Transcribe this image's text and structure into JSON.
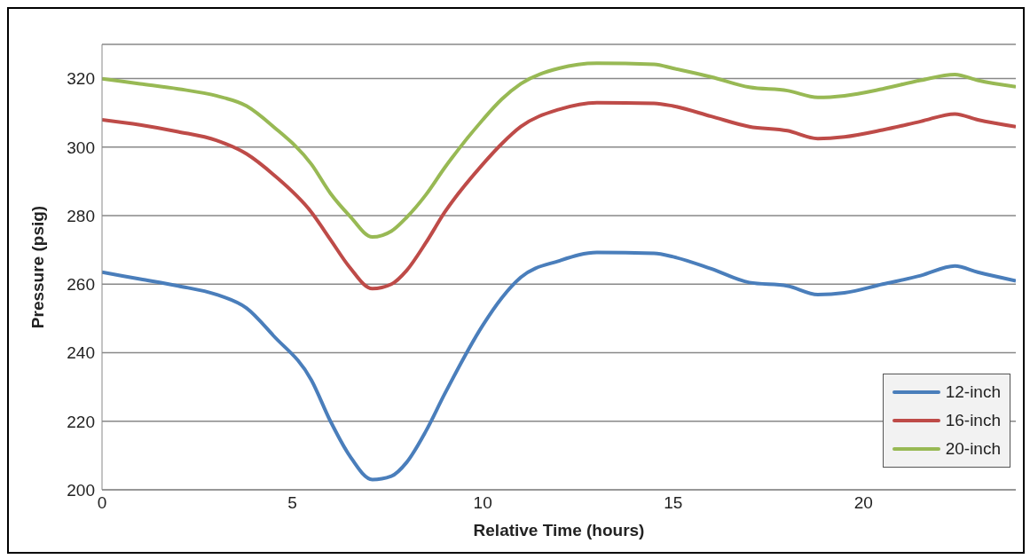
{
  "chart_data": {
    "type": "line",
    "xlabel": "Relative Time (hours)",
    "ylabel": "Pressure (psig)",
    "x": [
      0,
      1,
      2,
      3,
      3.8,
      4.5,
      5.5,
      6,
      6.5,
      7.1,
      7.6,
      8,
      8.5,
      9,
      10,
      10.5,
      11,
      12,
      13,
      14.5,
      15,
      16,
      17,
      18,
      18.8,
      19.5,
      20.5,
      21.5,
      22.4,
      23,
      24
    ],
    "series": [
      {
        "name": "12-inch",
        "color": "#4a7ebb",
        "values": [
          263.5,
          261.5,
          259.5,
          257,
          253,
          245,
          232,
          220,
          210,
          203,
          204,
          208,
          217,
          228,
          248,
          256,
          262,
          266.8,
          269.3,
          269,
          268,
          264.5,
          260.5,
          259.5,
          257,
          257.5,
          260,
          262.5,
          265.3,
          263.5,
          261
        ]
      },
      {
        "name": "16-inch",
        "color": "#be4b48",
        "values": [
          308,
          306.5,
          304.5,
          302,
          298,
          292,
          281,
          273,
          265,
          258.7,
          260,
          264,
          272,
          281,
          295,
          301,
          306,
          311,
          313,
          312.8,
          312,
          309,
          306,
          304.8,
          302.5,
          303,
          305,
          307.5,
          309.7,
          308,
          306
        ]
      },
      {
        "name": "20-inch",
        "color": "#98b954",
        "values": [
          320,
          318.5,
          317,
          315,
          312,
          306,
          295,
          286.5,
          280,
          273.8,
          275.5,
          279.5,
          286,
          294,
          308,
          314,
          318.5,
          323,
          324.5,
          324.2,
          323,
          320.5,
          317.5,
          316.5,
          314.5,
          315,
          317,
          319.5,
          321.2,
          319.5,
          317.6
        ]
      }
    ],
    "xlim": [
      0,
      24
    ],
    "xticks": [
      0,
      5,
      10,
      15,
      20
    ],
    "ylim": [
      200,
      330
    ],
    "yticks": [
      200,
      220,
      240,
      260,
      280,
      300,
      320
    ],
    "grid": "y",
    "legend": "bottom right",
    "marker": "none",
    "line_style": "solid"
  }
}
